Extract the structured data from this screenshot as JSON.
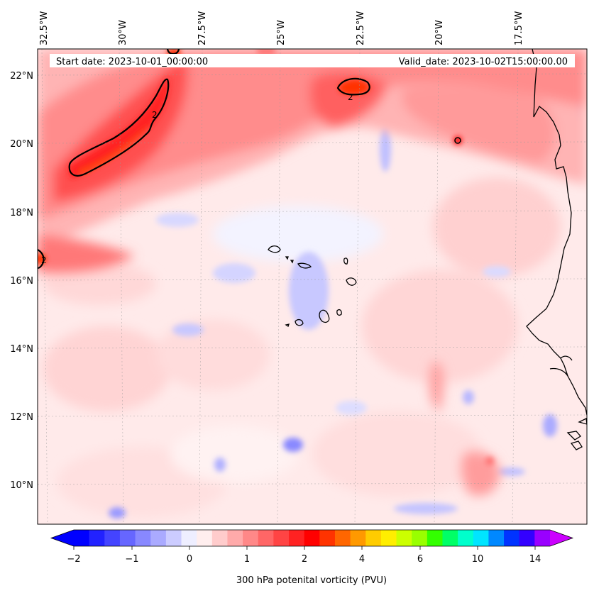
{
  "header": {
    "start_date": "Start date: 2023-10-01_00:00:00",
    "valid_date": "Valid_date: 2023-10-02T15:00:00.00"
  },
  "lon_labels": [
    "32.5°W",
    "30°W",
    "27.5°W",
    "25°W",
    "22.5°W",
    "20°W",
    "17.5°W"
  ],
  "lat_labels": [
    "22°N",
    "20°N",
    "18°N",
    "16°N",
    "14°N",
    "12°N",
    "10°N"
  ],
  "contour_labels": [
    "2",
    "2",
    "2"
  ],
  "colorbar": {
    "title": "300 hPa potenital vorticity (PVU)",
    "tick_labels": [
      "−2",
      "−1",
      "0",
      "1",
      "2",
      "4",
      "6",
      "10",
      "14"
    ],
    "colors": [
      "#0000ff",
      "#2222ff",
      "#4444ff",
      "#6666ff",
      "#8888ff",
      "#aaaaff",
      "#ccccff",
      "#eeeeff",
      "#ffeeee",
      "#ffcccc",
      "#ffaaaa",
      "#ff8888",
      "#ff6666",
      "#ff4444",
      "#ff2222",
      "#ff0000",
      "#ff3300",
      "#ff6600",
      "#ff9900",
      "#ffcc00",
      "#ffee00",
      "#ccff00",
      "#99ff00",
      "#33ff00",
      "#00ff66",
      "#00ffcc",
      "#00e5ff",
      "#0088ff",
      "#0033ff",
      "#3300ff",
      "#9900ff"
    ],
    "extend_low_color": "#0000ff",
    "extend_high_color": "#cc00ff"
  }
}
